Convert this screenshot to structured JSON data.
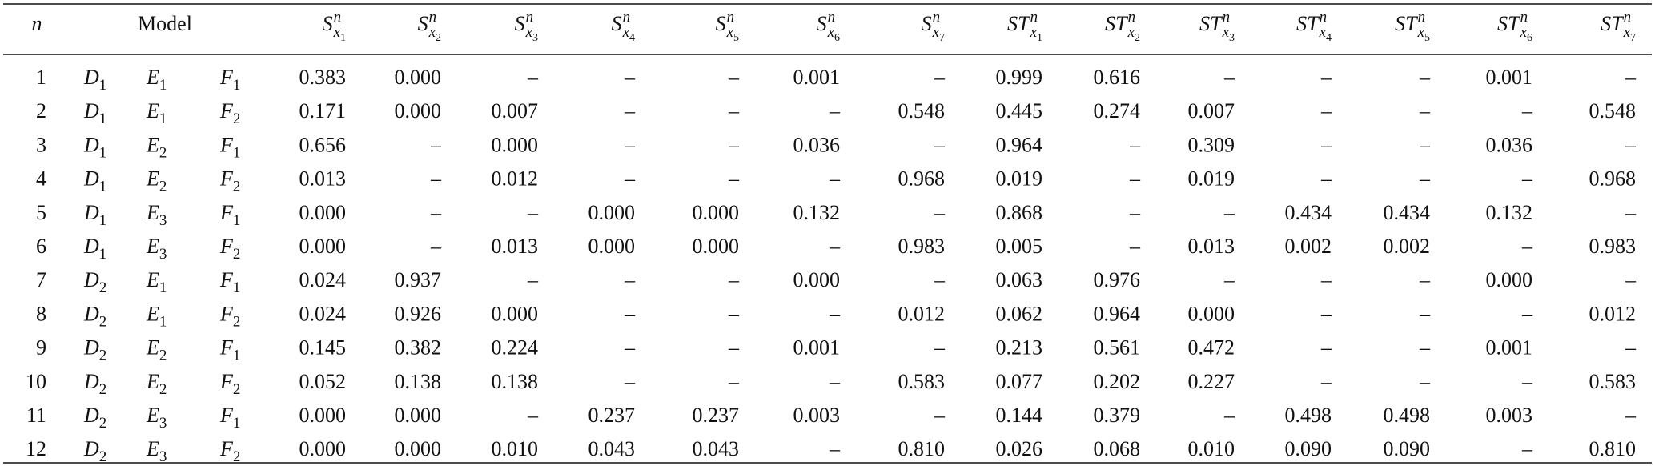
{
  "table": {
    "header": {
      "n": "n",
      "model": "Model",
      "columns": [
        {
          "base": "S",
          "sup": "n",
          "sub": "x",
          "index": "1"
        },
        {
          "base": "S",
          "sup": "n",
          "sub": "x",
          "index": "2"
        },
        {
          "base": "S",
          "sup": "n",
          "sub": "x",
          "index": "3"
        },
        {
          "base": "S",
          "sup": "n",
          "sub": "x",
          "index": "4"
        },
        {
          "base": "S",
          "sup": "n",
          "sub": "x",
          "index": "5"
        },
        {
          "base": "S",
          "sup": "n",
          "sub": "x",
          "index": "6"
        },
        {
          "base": "S",
          "sup": "n",
          "sub": "x",
          "index": "7"
        },
        {
          "base": "ST",
          "sup": "n",
          "sub": "x",
          "index": "1"
        },
        {
          "base": "ST",
          "sup": "n",
          "sub": "x",
          "index": "2"
        },
        {
          "base": "ST",
          "sup": "n",
          "sub": "x",
          "index": "3"
        },
        {
          "base": "ST",
          "sup": "n",
          "sub": "x",
          "index": "4"
        },
        {
          "base": "ST",
          "sup": "n",
          "sub": "x",
          "index": "5"
        },
        {
          "base": "ST",
          "sup": "n",
          "sub": "x",
          "index": "6"
        },
        {
          "base": "ST",
          "sup": "n",
          "sub": "x",
          "index": "7"
        }
      ]
    },
    "rows": [
      {
        "n": "1",
        "model": [
          {
            "base": "D",
            "sub": "1"
          },
          {
            "base": "E",
            "sub": "1"
          },
          {
            "base": "F",
            "sub": "1"
          }
        ],
        "values": [
          "0.383",
          "0.000",
          "–",
          "–",
          "–",
          "0.001",
          "–",
          "0.999",
          "0.616",
          "–",
          "–",
          "–",
          "0.001",
          "–"
        ]
      },
      {
        "n": "2",
        "model": [
          {
            "base": "D",
            "sub": "1"
          },
          {
            "base": "E",
            "sub": "1"
          },
          {
            "base": "F",
            "sub": "2"
          }
        ],
        "values": [
          "0.171",
          "0.000",
          "0.007",
          "–",
          "–",
          "–",
          "0.548",
          "0.445",
          "0.274",
          "0.007",
          "–",
          "–",
          "–",
          "0.548"
        ]
      },
      {
        "n": "3",
        "model": [
          {
            "base": "D",
            "sub": "1"
          },
          {
            "base": "E",
            "sub": "2"
          },
          {
            "base": "F",
            "sub": "1"
          }
        ],
        "values": [
          "0.656",
          "–",
          "0.000",
          "–",
          "–",
          "0.036",
          "–",
          "0.964",
          "–",
          "0.309",
          "–",
          "–",
          "0.036",
          "–"
        ]
      },
      {
        "n": "4",
        "model": [
          {
            "base": "D",
            "sub": "1"
          },
          {
            "base": "E",
            "sub": "2"
          },
          {
            "base": "F",
            "sub": "2"
          }
        ],
        "values": [
          "0.013",
          "–",
          "0.012",
          "–",
          "–",
          "–",
          "0.968",
          "0.019",
          "–",
          "0.019",
          "–",
          "–",
          "–",
          "0.968"
        ]
      },
      {
        "n": "5",
        "model": [
          {
            "base": "D",
            "sub": "1"
          },
          {
            "base": "E",
            "sub": "3"
          },
          {
            "base": "F",
            "sub": "1"
          }
        ],
        "values": [
          "0.000",
          "–",
          "–",
          "0.000",
          "0.000",
          "0.132",
          "–",
          "0.868",
          "–",
          "–",
          "0.434",
          "0.434",
          "0.132",
          "–"
        ]
      },
      {
        "n": "6",
        "model": [
          {
            "base": "D",
            "sub": "1"
          },
          {
            "base": "E",
            "sub": "3"
          },
          {
            "base": "F",
            "sub": "2"
          }
        ],
        "values": [
          "0.000",
          "–",
          "0.013",
          "0.000",
          "0.000",
          "–",
          "0.983",
          "0.005",
          "–",
          "0.013",
          "0.002",
          "0.002",
          "–",
          "0.983"
        ]
      },
      {
        "n": "7",
        "model": [
          {
            "base": "D",
            "sub": "2"
          },
          {
            "base": "E",
            "sub": "1"
          },
          {
            "base": "F",
            "sub": "1"
          }
        ],
        "values": [
          "0.024",
          "0.937",
          "–",
          "–",
          "–",
          "0.000",
          "–",
          "0.063",
          "0.976",
          "–",
          "–",
          "–",
          "0.000",
          "–"
        ]
      },
      {
        "n": "8",
        "model": [
          {
            "base": "D",
            "sub": "2"
          },
          {
            "base": "E",
            "sub": "1"
          },
          {
            "base": "F",
            "sub": "2"
          }
        ],
        "values": [
          "0.024",
          "0.926",
          "0.000",
          "–",
          "–",
          "–",
          "0.012",
          "0.062",
          "0.964",
          "0.000",
          "–",
          "–",
          "–",
          "0.012"
        ]
      },
      {
        "n": "9",
        "model": [
          {
            "base": "D",
            "sub": "2"
          },
          {
            "base": "E",
            "sub": "2"
          },
          {
            "base": "F",
            "sub": "1"
          }
        ],
        "values": [
          "0.145",
          "0.382",
          "0.224",
          "–",
          "–",
          "0.001",
          "–",
          "0.213",
          "0.561",
          "0.472",
          "–",
          "–",
          "0.001",
          "–"
        ]
      },
      {
        "n": "10",
        "model": [
          {
            "base": "D",
            "sub": "2"
          },
          {
            "base": "E",
            "sub": "2"
          },
          {
            "base": "F",
            "sub": "2"
          }
        ],
        "values": [
          "0.052",
          "0.138",
          "0.138",
          "–",
          "–",
          "–",
          "0.583",
          "0.077",
          "0.202",
          "0.227",
          "–",
          "–",
          "–",
          "0.583"
        ]
      },
      {
        "n": "11",
        "model": [
          {
            "base": "D",
            "sub": "2"
          },
          {
            "base": "E",
            "sub": "3"
          },
          {
            "base": "F",
            "sub": "1"
          }
        ],
        "values": [
          "0.000",
          "0.000",
          "–",
          "0.237",
          "0.237",
          "0.003",
          "–",
          "0.144",
          "0.379",
          "–",
          "0.498",
          "0.498",
          "0.003",
          "–"
        ]
      },
      {
        "n": "12",
        "model": [
          {
            "base": "D",
            "sub": "2"
          },
          {
            "base": "E",
            "sub": "3"
          },
          {
            "base": "F",
            "sub": "2"
          }
        ],
        "values": [
          "0.000",
          "0.000",
          "0.010",
          "0.043",
          "0.043",
          "–",
          "0.810",
          "0.026",
          "0.068",
          "0.010",
          "0.090",
          "0.090",
          "–",
          "0.810"
        ]
      }
    ]
  }
}
